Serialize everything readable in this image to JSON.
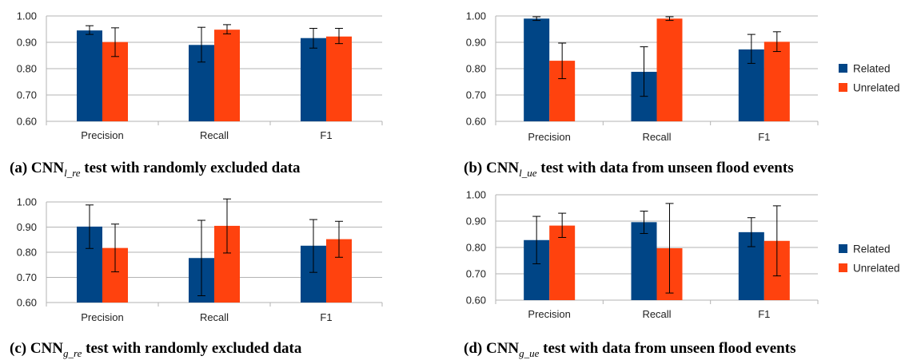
{
  "colors": {
    "related": "#004586",
    "unrelated": "#ff420e",
    "grid": "#b3b3b3",
    "axis": "#b3b3b3",
    "errorbar": "#000000"
  },
  "chart_data": [
    {
      "id": "a",
      "type": "bar",
      "categories": [
        "Precision",
        "Recall",
        "F1"
      ],
      "ylim": [
        0.6,
        1.0
      ],
      "yticks": [
        "0.60",
        "0.70",
        "0.80",
        "0.90",
        "1.00"
      ],
      "grid": true,
      "legend": "none",
      "series": [
        {
          "name": "Related",
          "values": [
            0.945,
            0.89,
            0.916
          ],
          "err_low": [
            0.93,
            0.825,
            0.878
          ],
          "err_high": [
            0.963,
            0.957,
            0.953
          ]
        },
        {
          "name": "Unrelated",
          "values": [
            0.901,
            0.948,
            0.922
          ],
          "err_low": [
            0.846,
            0.932,
            0.895
          ],
          "err_high": [
            0.955,
            0.967,
            0.953
          ]
        }
      ],
      "caption": {
        "prefix": "(a) CNN",
        "sub": "l_re",
        "suffix": " test with randomly excluded data"
      }
    },
    {
      "id": "b",
      "type": "bar",
      "categories": [
        "Precision",
        "Recall",
        "F1"
      ],
      "ylim": [
        0.6,
        1.0
      ],
      "yticks": [
        "0.60",
        "0.70",
        "0.80",
        "0.90",
        "1.00"
      ],
      "grid": true,
      "legend": "right",
      "series": [
        {
          "name": "Related",
          "values": [
            0.99,
            0.788,
            0.873
          ],
          "err_low": [
            0.983,
            0.695,
            0.82
          ],
          "err_high": [
            0.997,
            0.883,
            0.93
          ]
        },
        {
          "name": "Unrelated",
          "values": [
            0.83,
            0.99,
            0.902
          ],
          "err_low": [
            0.762,
            0.983,
            0.865
          ],
          "err_high": [
            0.897,
            0.997,
            0.94
          ]
        }
      ],
      "caption": {
        "prefix": "(b) CNN",
        "sub": "l_ue",
        "suffix": " test with data from unseen flood events"
      }
    },
    {
      "id": "c",
      "type": "bar",
      "categories": [
        "Precision",
        "Recall",
        "F1"
      ],
      "ylim": [
        0.6,
        1.0
      ],
      "yticks": [
        "0.60",
        "0.70",
        "0.80",
        "0.90",
        "1.00"
      ],
      "grid": true,
      "legend": "none",
      "series": [
        {
          "name": "Related",
          "values": [
            0.902,
            0.777,
            0.826
          ],
          "err_low": [
            0.815,
            0.627,
            0.72
          ],
          "err_high": [
            0.988,
            0.927,
            0.93
          ]
        },
        {
          "name": "Unrelated",
          "values": [
            0.817,
            0.905,
            0.852
          ],
          "err_low": [
            0.722,
            0.797,
            0.78
          ],
          "err_high": [
            0.912,
            1.012,
            0.923
          ]
        }
      ],
      "caption": {
        "prefix": "(c) CNN",
        "sub": "g_re",
        "suffix": " test with randomly excluded data"
      }
    },
    {
      "id": "d",
      "type": "bar",
      "categories": [
        "Precision",
        "Recall",
        "F1"
      ],
      "ylim": [
        0.6,
        1.0
      ],
      "yticks": [
        "0.60",
        "0.70",
        "0.80",
        "0.90",
        "1.00"
      ],
      "grid": true,
      "legend": "right",
      "series": [
        {
          "name": "Related",
          "values": [
            0.828,
            0.896,
            0.858
          ],
          "err_low": [
            0.738,
            0.853,
            0.803
          ],
          "err_high": [
            0.918,
            0.938,
            0.913
          ]
        },
        {
          "name": "Unrelated",
          "values": [
            0.883,
            0.797,
            0.825
          ],
          "err_low": [
            0.838,
            0.627,
            0.692
          ],
          "err_high": [
            0.93,
            0.967,
            0.958
          ]
        }
      ],
      "caption": {
        "prefix": "(d) CNN",
        "sub": "g_ue",
        "suffix": " test with data from unseen flood events"
      }
    }
  ]
}
